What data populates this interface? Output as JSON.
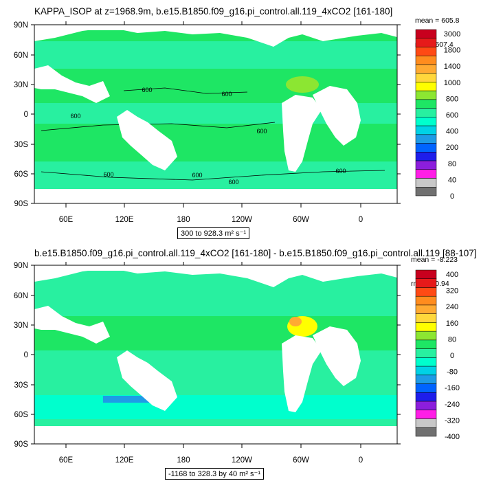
{
  "chart_data": [
    {
      "type": "heatmap",
      "title": "KAPPA_ISOP at z=1968.9m, b.e15.B1850.f09_g16.pi_control.all.119_4xCO2 [161-180]",
      "stats": [
        "mean = 605.8",
        "rms = 607.4"
      ],
      "range_note": "300 to 928.3 m² s⁻¹",
      "x_ticks": [
        "60E",
        "120E",
        "180",
        "120W",
        "60W",
        "0"
      ],
      "y_ticks": [
        "90N",
        "60N",
        "30N",
        "0",
        "30S",
        "60S",
        "90S"
      ],
      "colorbar_labels": [
        "3000",
        "1800",
        "1400",
        "1000",
        "800",
        "600",
        "400",
        "200",
        "80",
        "40",
        "0"
      ],
      "colorbar_colors": [
        "#c8001e",
        "#e61a1a",
        "#ff4a14",
        "#ff8c1e",
        "#ffaa32",
        "#ffd73c",
        "#ffff00",
        "#8ce632",
        "#1ee664",
        "#28f0a0",
        "#00ffcd",
        "#00d2e6",
        "#1e9be6",
        "#0064ff",
        "#1e1eeb",
        "#8c1edc",
        "#ff1ee6",
        "#c8c8c8",
        "#707070"
      ],
      "contour_labels": [
        "600",
        "600",
        "600",
        "600",
        "600",
        "600",
        "600",
        "600"
      ],
      "dominant_value_color": "#1ee664"
    },
    {
      "type": "heatmap",
      "title": "b.e15.B1850.f09_g16.pi_control.all.119_4xCO2 [161-180] - b.e15.B1850.f09_g16.pi_control.all.119 [88-107]",
      "stats": [
        "mean = -8.223",
        "rms = 40.94"
      ],
      "range_note": "-1168 to 328.3 by 40 m² s⁻¹",
      "x_ticks": [
        "60E",
        "120E",
        "180",
        "120W",
        "60W",
        "0"
      ],
      "y_ticks": [
        "90N",
        "60N",
        "30N",
        "0",
        "30S",
        "60S",
        "90S"
      ],
      "colorbar_labels": [
        "400",
        "320",
        "240",
        "160",
        "80",
        "0",
        "-80",
        "-160",
        "-240",
        "-320",
        "-400"
      ],
      "colorbar_colors": [
        "#c8001e",
        "#e61a1a",
        "#ff4a14",
        "#ff8c1e",
        "#ffaa32",
        "#ffd73c",
        "#ffff00",
        "#8ce632",
        "#1ee664",
        "#28f0a0",
        "#00ffcd",
        "#00d2e6",
        "#1e9be6",
        "#0064ff",
        "#1e1eeb",
        "#8c1edc",
        "#ff1ee6",
        "#c8c8c8",
        "#707070"
      ],
      "dominant_value_color": "#28f0a0"
    }
  ]
}
